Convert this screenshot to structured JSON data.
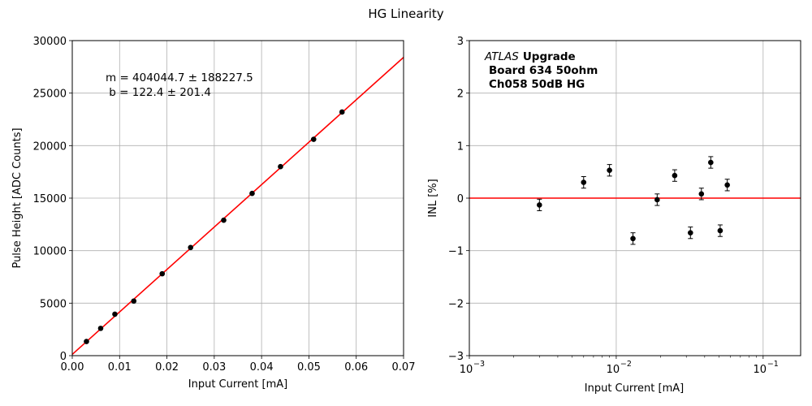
{
  "figure": {
    "title": "HG Linearity"
  },
  "chart_data": [
    {
      "type": "scatter",
      "title": "",
      "xlabel": "Input Current [mA]",
      "ylabel": "Pulse Height [ADC Counts]",
      "xlim": [
        0,
        0.07
      ],
      "ylim": [
        0,
        30000
      ],
      "grid": true,
      "x_ticks": [
        "0.00",
        "0.01",
        "0.02",
        "0.03",
        "0.04",
        "0.05",
        "0.06",
        "0.07"
      ],
      "y_ticks": [
        "0",
        "5000",
        "10000",
        "15000",
        "20000",
        "25000",
        "30000"
      ],
      "series": [
        {
          "x": [
            0.003,
            0.006,
            0.009,
            0.013,
            0.019,
            0.025,
            0.032,
            0.038,
            0.044,
            0.051,
            0.057
          ],
          "y": [
            1350,
            2600,
            3950,
            5200,
            7800,
            10300,
            12900,
            15450,
            18000,
            20600,
            23200
          ]
        }
      ],
      "fit_line": {
        "slope": 404044.7,
        "intercept": 122.4,
        "color": "#ff0000"
      },
      "annotation": [
        "m = 404044.7 ± 188227.5",
        " b = 122.4 ± 201.4"
      ],
      "marker_color": "#000000"
    },
    {
      "type": "scatter",
      "title": "",
      "xlabel": "Input Current [mA]",
      "ylabel": "INL [%]",
      "xscale": "log",
      "xlim": [
        0.001,
        0.18
      ],
      "ylim": [
        -3,
        3
      ],
      "grid": true,
      "x_ticks": [
        "10",
        "10",
        "10"
      ],
      "x_tick_exponents": [
        "−3",
        "−2",
        "−1"
      ],
      "y_ticks": [
        "−3",
        "−2",
        "−1",
        "0",
        "1",
        "2",
        "3"
      ],
      "series": [
        {
          "x": [
            0.003,
            0.006,
            0.009,
            0.013,
            0.019,
            0.025,
            0.032,
            0.038,
            0.044,
            0.051,
            0.057
          ],
          "y": [
            -0.13,
            0.3,
            0.53,
            -0.77,
            -0.03,
            0.43,
            -0.66,
            0.08,
            0.68,
            -0.62,
            0.25
          ],
          "yerr": [
            0.11,
            0.11,
            0.11,
            0.11,
            0.11,
            0.11,
            0.11,
            0.11,
            0.11,
            0.11,
            0.11
          ]
        }
      ],
      "reference_line": {
        "y": 0,
        "color": "#ff0000"
      },
      "annotation": {
        "italic": "ATLAS",
        "bold": "Upgrade",
        "line2": "Board 634 50ohm",
        "line3": "Ch058 50dB HG"
      },
      "marker_color": "#000000"
    }
  ]
}
